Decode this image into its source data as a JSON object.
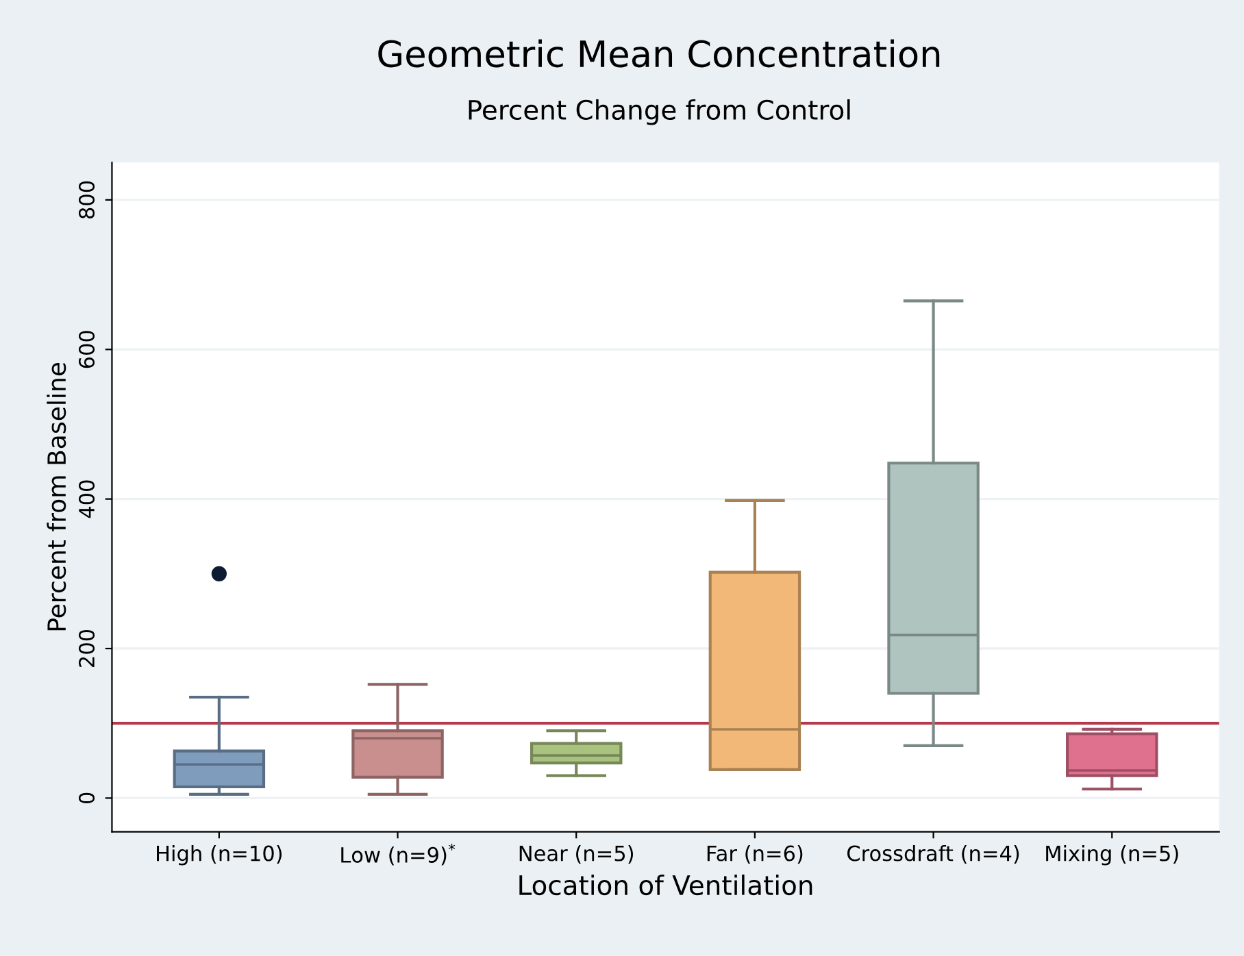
{
  "chart_data": {
    "type": "box",
    "title": "Geometric Mean Concentration",
    "subtitle": "Percent Change from Control",
    "xlabel": "Location of Ventilation",
    "ylabel": "Percent from Baseline",
    "categories": [
      "High (n=10)",
      "Low (n=9)$^{*}$",
      "Near (n=5)",
      "Far (n=6)",
      "Crossdraft (n=4)",
      "Mixing (n=5)"
    ],
    "colors": [
      "#7f9cbd",
      "#c98f8f",
      "#a9c27e",
      "#f2b877",
      "#b0c4bf",
      "#e0718e"
    ],
    "boxes": [
      {
        "low": 5,
        "q1": 15,
        "median": 45,
        "q3": 63,
        "high": 135,
        "outliers": [
          300
        ]
      },
      {
        "low": 5,
        "q1": 28,
        "median": 80,
        "q3": 90,
        "high": 152
      },
      {
        "low": 30,
        "q1": 47,
        "median": 57,
        "q3": 73,
        "high": 90
      },
      {
        "low": 38,
        "q1": 38,
        "median": 92,
        "q3": 302,
        "high": 398
      },
      {
        "low": 70,
        "q1": 140,
        "median": 218,
        "q3": 448,
        "high": 665
      },
      {
        "low": 12,
        "q1": 30,
        "median": 37,
        "q3": 86,
        "high": 92
      }
    ],
    "ylim": [
      -45,
      850
    ],
    "yticks": [
      0,
      200,
      400,
      600,
      800
    ],
    "grid": "y",
    "ref_lines": [
      {
        "axis": "y",
        "value": 100,
        "color": "#b5394a"
      }
    ]
  }
}
